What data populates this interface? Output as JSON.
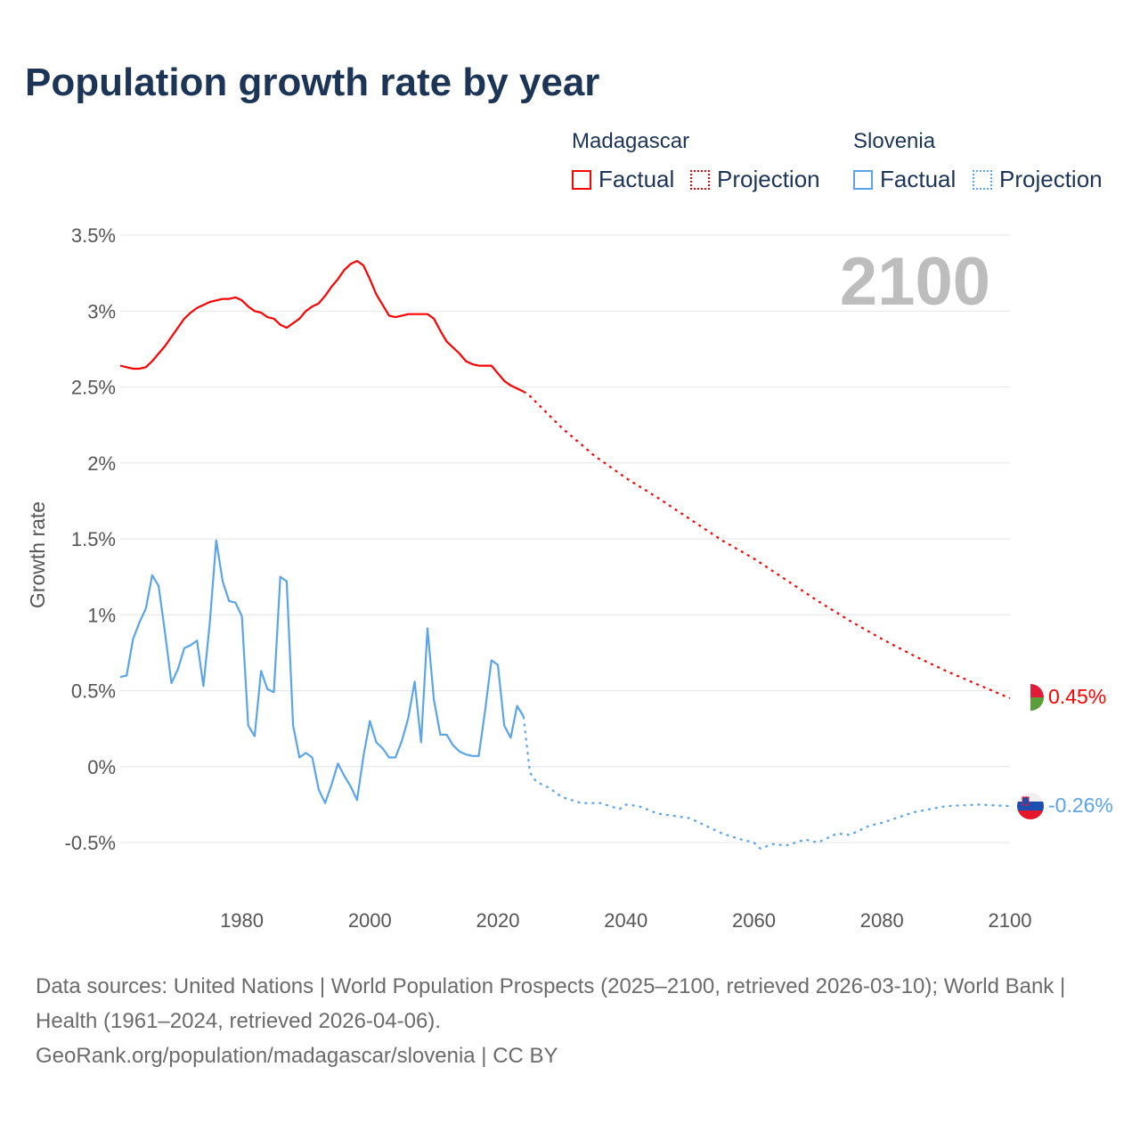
{
  "title": "Population growth rate by year",
  "legend": {
    "countries": [
      {
        "name": "Madagascar",
        "factual": "Factual",
        "projection": "Projection",
        "color": "#ff0000"
      },
      {
        "name": "Slovenia",
        "factual": "Factual",
        "projection": "Projection",
        "color": "#5aa5ea"
      }
    ]
  },
  "year_label": "2100",
  "end_labels": {
    "madagascar": "0.45%",
    "slovenia": "-0.26%"
  },
  "footer": {
    "sources": "Data sources: United Nations | World Population Prospects (2025–2100, retrieved 2026-03-10); World Bank | Health (1961–2024, retrieved 2026-04-06).",
    "credit": "GeoRank.org/population/madagascar/slovenia | CC BY"
  },
  "chart_data": {
    "type": "line",
    "title": "Population growth rate by year",
    "xlabel": "",
    "ylabel": "Growth rate",
    "xlim": [
      1961,
      2100
    ],
    "ylim": [
      -0.5,
      3.5
    ],
    "xticks": [
      1980,
      2000,
      2020,
      2040,
      2060,
      2080,
      2100
    ],
    "yticks": [
      -0.5,
      0,
      0.5,
      1,
      1.5,
      2,
      2.5,
      3,
      3.5
    ],
    "ytick_labels": [
      "-0.5%",
      "0%",
      "0.5%",
      "1%",
      "1.5%",
      "2%",
      "2.5%",
      "3%",
      "3.5%"
    ],
    "grid": true,
    "legend_position": "top-right",
    "series": [
      {
        "name": "Madagascar Factual",
        "color": "#ff0000",
        "dashed": false,
        "x": [
          1961,
          1962,
          1963,
          1964,
          1965,
          1966,
          1967,
          1968,
          1969,
          1970,
          1971,
          1972,
          1973,
          1974,
          1975,
          1976,
          1977,
          1978,
          1979,
          1980,
          1981,
          1982,
          1983,
          1984,
          1985,
          1986,
          1987,
          1988,
          1989,
          1990,
          1991,
          1992,
          1993,
          1994,
          1995,
          1996,
          1997,
          1998,
          1999,
          2000,
          2001,
          2002,
          2003,
          2004,
          2005,
          2006,
          2007,
          2008,
          2009,
          2010,
          2011,
          2012,
          2013,
          2014,
          2015,
          2016,
          2017,
          2018,
          2019,
          2020,
          2021,
          2022,
          2023,
          2024
        ],
        "y": [
          2.64,
          2.63,
          2.62,
          2.62,
          2.63,
          2.67,
          2.72,
          2.77,
          2.83,
          2.89,
          2.95,
          2.99,
          3.02,
          3.04,
          3.06,
          3.07,
          3.08,
          3.08,
          3.09,
          3.07,
          3.03,
          3.0,
          2.99,
          2.96,
          2.95,
          2.91,
          2.89,
          2.92,
          2.95,
          3.0,
          3.03,
          3.05,
          3.1,
          3.16,
          3.21,
          3.27,
          3.31,
          3.33,
          3.3,
          3.21,
          3.11,
          3.04,
          2.97,
          2.96,
          2.97,
          2.98,
          2.98,
          2.98,
          2.98,
          2.95,
          2.87,
          2.8,
          2.76,
          2.72,
          2.67,
          2.65,
          2.64,
          2.64,
          2.64,
          2.59,
          2.54,
          2.51,
          2.49,
          2.47
        ]
      },
      {
        "name": "Madagascar Projection",
        "color": "#ff0000",
        "dashed": true,
        "x": [
          2024,
          2025,
          2030,
          2035,
          2040,
          2045,
          2050,
          2055,
          2060,
          2065,
          2070,
          2075,
          2080,
          2085,
          2090,
          2095,
          2100
        ],
        "y": [
          2.47,
          2.44,
          2.23,
          2.05,
          1.9,
          1.77,
          1.63,
          1.49,
          1.37,
          1.23,
          1.09,
          0.96,
          0.84,
          0.73,
          0.63,
          0.54,
          0.45
        ]
      },
      {
        "name": "Slovenia Factual",
        "color": "#5aa5ea",
        "dashed": false,
        "x": [
          1961,
          1962,
          1963,
          1964,
          1965,
          1966,
          1967,
          1968,
          1969,
          1970,
          1971,
          1972,
          1973,
          1974,
          1975,
          1976,
          1977,
          1978,
          1979,
          1980,
          1981,
          1982,
          1983,
          1984,
          1985,
          1986,
          1987,
          1988,
          1989,
          1990,
          1991,
          1992,
          1993,
          1994,
          1995,
          1996,
          1997,
          1998,
          1999,
          2000,
          2001,
          2002,
          2003,
          2004,
          2005,
          2006,
          2007,
          2008,
          2009,
          2010,
          2011,
          2012,
          2013,
          2014,
          2015,
          2016,
          2017,
          2018,
          2019,
          2020,
          2021,
          2022,
          2023,
          2024
        ],
        "y": [
          0.59,
          0.6,
          0.84,
          0.95,
          1.04,
          1.26,
          1.19,
          0.88,
          0.55,
          0.64,
          0.78,
          0.8,
          0.83,
          0.53,
          0.95,
          1.49,
          1.22,
          1.09,
          1.08,
          0.99,
          0.27,
          0.2,
          0.63,
          0.51,
          0.49,
          1.25,
          1.22,
          0.27,
          0.06,
          0.09,
          0.06,
          -0.15,
          -0.24,
          -0.12,
          0.02,
          -0.06,
          -0.13,
          -0.22,
          0.07,
          0.3,
          0.16,
          0.12,
          0.06,
          0.06,
          0.17,
          0.32,
          0.56,
          0.16,
          0.91,
          0.44,
          0.21,
          0.21,
          0.14,
          0.1,
          0.08,
          0.07,
          0.07,
          0.37,
          0.7,
          0.67,
          0.27,
          0.19,
          0.4,
          0.33
        ]
      },
      {
        "name": "Slovenia Projection",
        "color": "#5aa5ea",
        "dashed": true,
        "x": [
          2024,
          2025,
          2026,
          2028,
          2030,
          2033,
          2036,
          2039,
          2040,
          2042,
          2045,
          2050,
          2055,
          2058,
          2060,
          2061,
          2063,
          2065,
          2068,
          2070,
          2073,
          2075,
          2078,
          2080,
          2085,
          2090,
          2095,
          2100
        ],
        "y": [
          0.33,
          -0.04,
          -0.1,
          -0.14,
          -0.2,
          -0.24,
          -0.24,
          -0.28,
          -0.25,
          -0.26,
          -0.31,
          -0.34,
          -0.44,
          -0.48,
          -0.5,
          -0.54,
          -0.51,
          -0.52,
          -0.48,
          -0.5,
          -0.44,
          -0.45,
          -0.39,
          -0.37,
          -0.3,
          -0.26,
          -0.25,
          -0.26
        ]
      }
    ]
  }
}
